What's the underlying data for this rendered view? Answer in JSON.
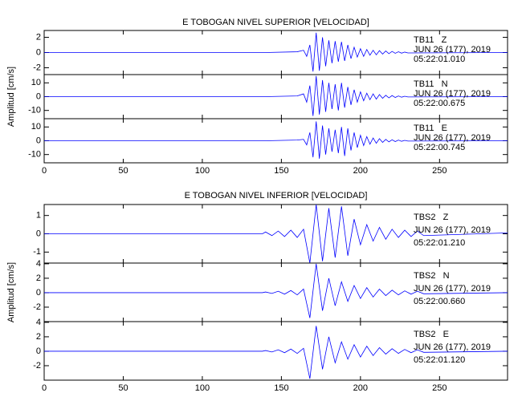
{
  "chart_data": [
    {
      "type": "line",
      "title": "E TOBOGAN NIVEL SUPERIOR [VELOCIDAD]",
      "ylabel": "Amplitud [cm/s]",
      "color": "#0000ff",
      "xlim": [
        0,
        293
      ],
      "xticks": [
        0,
        50,
        100,
        150,
        200,
        250
      ],
      "x": [
        0,
        140,
        160,
        164,
        166,
        168,
        170,
        172,
        174,
        176,
        178,
        180,
        182,
        184,
        186,
        188,
        190,
        192,
        194,
        196,
        198,
        200,
        202,
        204,
        206,
        208,
        210,
        212,
        214,
        216,
        218,
        220,
        222,
        224,
        226,
        228,
        230,
        293
      ],
      "panels": [
        {
          "station": "TB11   Z",
          "date": "JUN 26 (177), 2019",
          "time": "05:22:01.010",
          "ylim": [
            -2.9,
            2.9
          ],
          "yticks": [
            -2,
            0,
            2
          ],
          "values": [
            0,
            0,
            0.1,
            0.3,
            -0.5,
            1.0,
            -2.5,
            2.6,
            -2.4,
            2.0,
            -1.8,
            1.6,
            -1.4,
            1.5,
            -1.2,
            1.4,
            -1.1,
            1.0,
            -0.8,
            0.7,
            -0.6,
            0.5,
            -0.5,
            0.4,
            -0.35,
            0.3,
            -0.3,
            0.25,
            -0.2,
            0.2,
            -0.15,
            0.15,
            -0.1,
            0.1,
            -0.08,
            0.06,
            -0.05,
            0
          ]
        },
        {
          "station": "TB11   N",
          "date": "JUN 26 (177), 2019",
          "time": "05:22:00.675",
          "ylim": [
            -16,
            16
          ],
          "yticks": [
            -10,
            0,
            10
          ],
          "values": [
            0,
            0,
            0.5,
            2,
            -4,
            8,
            -14,
            15,
            -13,
            12,
            -11,
            10,
            -9,
            9,
            -10,
            10,
            -8,
            7,
            -6,
            5,
            -4,
            3.5,
            -3,
            2.5,
            -2.2,
            2,
            -1.8,
            1.5,
            -1.2,
            1,
            -0.9,
            0.8,
            -0.6,
            0.5,
            -0.4,
            0.3,
            -0.2,
            0
          ]
        },
        {
          "station": "TB11   E",
          "date": "JUN 26 (177), 2019",
          "time": "05:22:00.745",
          "ylim": [
            -16,
            16
          ],
          "yticks": [
            -10,
            0,
            10
          ],
          "values": [
            0,
            0,
            0.5,
            1,
            -3,
            6,
            -12,
            14,
            -13,
            11,
            -10,
            9,
            -8,
            8,
            -9,
            10,
            -11,
            9,
            -7,
            6,
            -5,
            4,
            -3.5,
            3,
            -2.5,
            2,
            -1.8,
            1.5,
            -1.2,
            1,
            -0.8,
            0.7,
            -0.6,
            0.5,
            -0.4,
            0.3,
            -0.2,
            0
          ]
        }
      ]
    },
    {
      "type": "line",
      "title": "E TOBOGAN NIVEL INFERIOR [VELOCIDAD]",
      "ylabel": "Amplitud [cm/s]",
      "color": "#0000ff",
      "xlim": [
        0,
        293
      ],
      "xticks": [
        0,
        50,
        100,
        150,
        200,
        250
      ],
      "x": [
        0,
        138,
        140,
        144,
        148,
        152,
        156,
        160,
        164,
        168,
        172,
        176,
        180,
        184,
        188,
        192,
        196,
        200,
        204,
        208,
        212,
        216,
        220,
        224,
        228,
        232,
        236,
        240,
        293
      ],
      "panels": [
        {
          "station": "TBS2   Z",
          "date": "JUN 26 (177), 2019",
          "time": "05:22:01.210",
          "ylim": [
            -1.6,
            1.6
          ],
          "yticks": [
            -1,
            0,
            1
          ],
          "values": [
            0,
            0,
            0.1,
            -0.1,
            0.15,
            -0.15,
            0.2,
            -0.2,
            0.25,
            -1.6,
            1.6,
            -1.5,
            1.4,
            -1.3,
            1.5,
            -1.2,
            0.8,
            -0.6,
            0.5,
            -0.4,
            0.35,
            -0.3,
            0.25,
            -0.2,
            0.2,
            -0.15,
            0.15,
            -0.1,
            0.05
          ]
        },
        {
          "station": "TBS2   N",
          "date": "JUN 26 (177), 2019",
          "time": "05:22:00.660",
          "ylim": [
            -4,
            4.1
          ],
          "yticks": [
            -2,
            0,
            2,
            4
          ],
          "values": [
            0,
            0,
            0.1,
            -0.1,
            0.2,
            -0.2,
            0.3,
            -0.3,
            0.5,
            -3.5,
            4,
            -2.5,
            2,
            -1.8,
            1.5,
            -1.2,
            1,
            -0.8,
            0.7,
            -0.6,
            0.5,
            -0.4,
            0.35,
            -0.3,
            0.25,
            -0.2,
            0.2,
            -0.15,
            0
          ]
        },
        {
          "station": "TBS2   E",
          "date": "JUN 26 (177), 2019",
          "time": "05:22:01.120",
          "ylim": [
            -4,
            4.1
          ],
          "yticks": [
            -2,
            0,
            2,
            4
          ],
          "values": [
            0,
            0,
            0.1,
            -0.1,
            0.2,
            -0.2,
            0.3,
            -0.3,
            0.4,
            -3.8,
            3.5,
            -2.5,
            2,
            -1.6,
            1.3,
            -1.1,
            0.9,
            -0.8,
            0.7,
            -0.6,
            0.5,
            -0.4,
            0.35,
            -0.3,
            0.25,
            -0.2,
            0.2,
            -0.15,
            0
          ]
        }
      ]
    }
  ]
}
